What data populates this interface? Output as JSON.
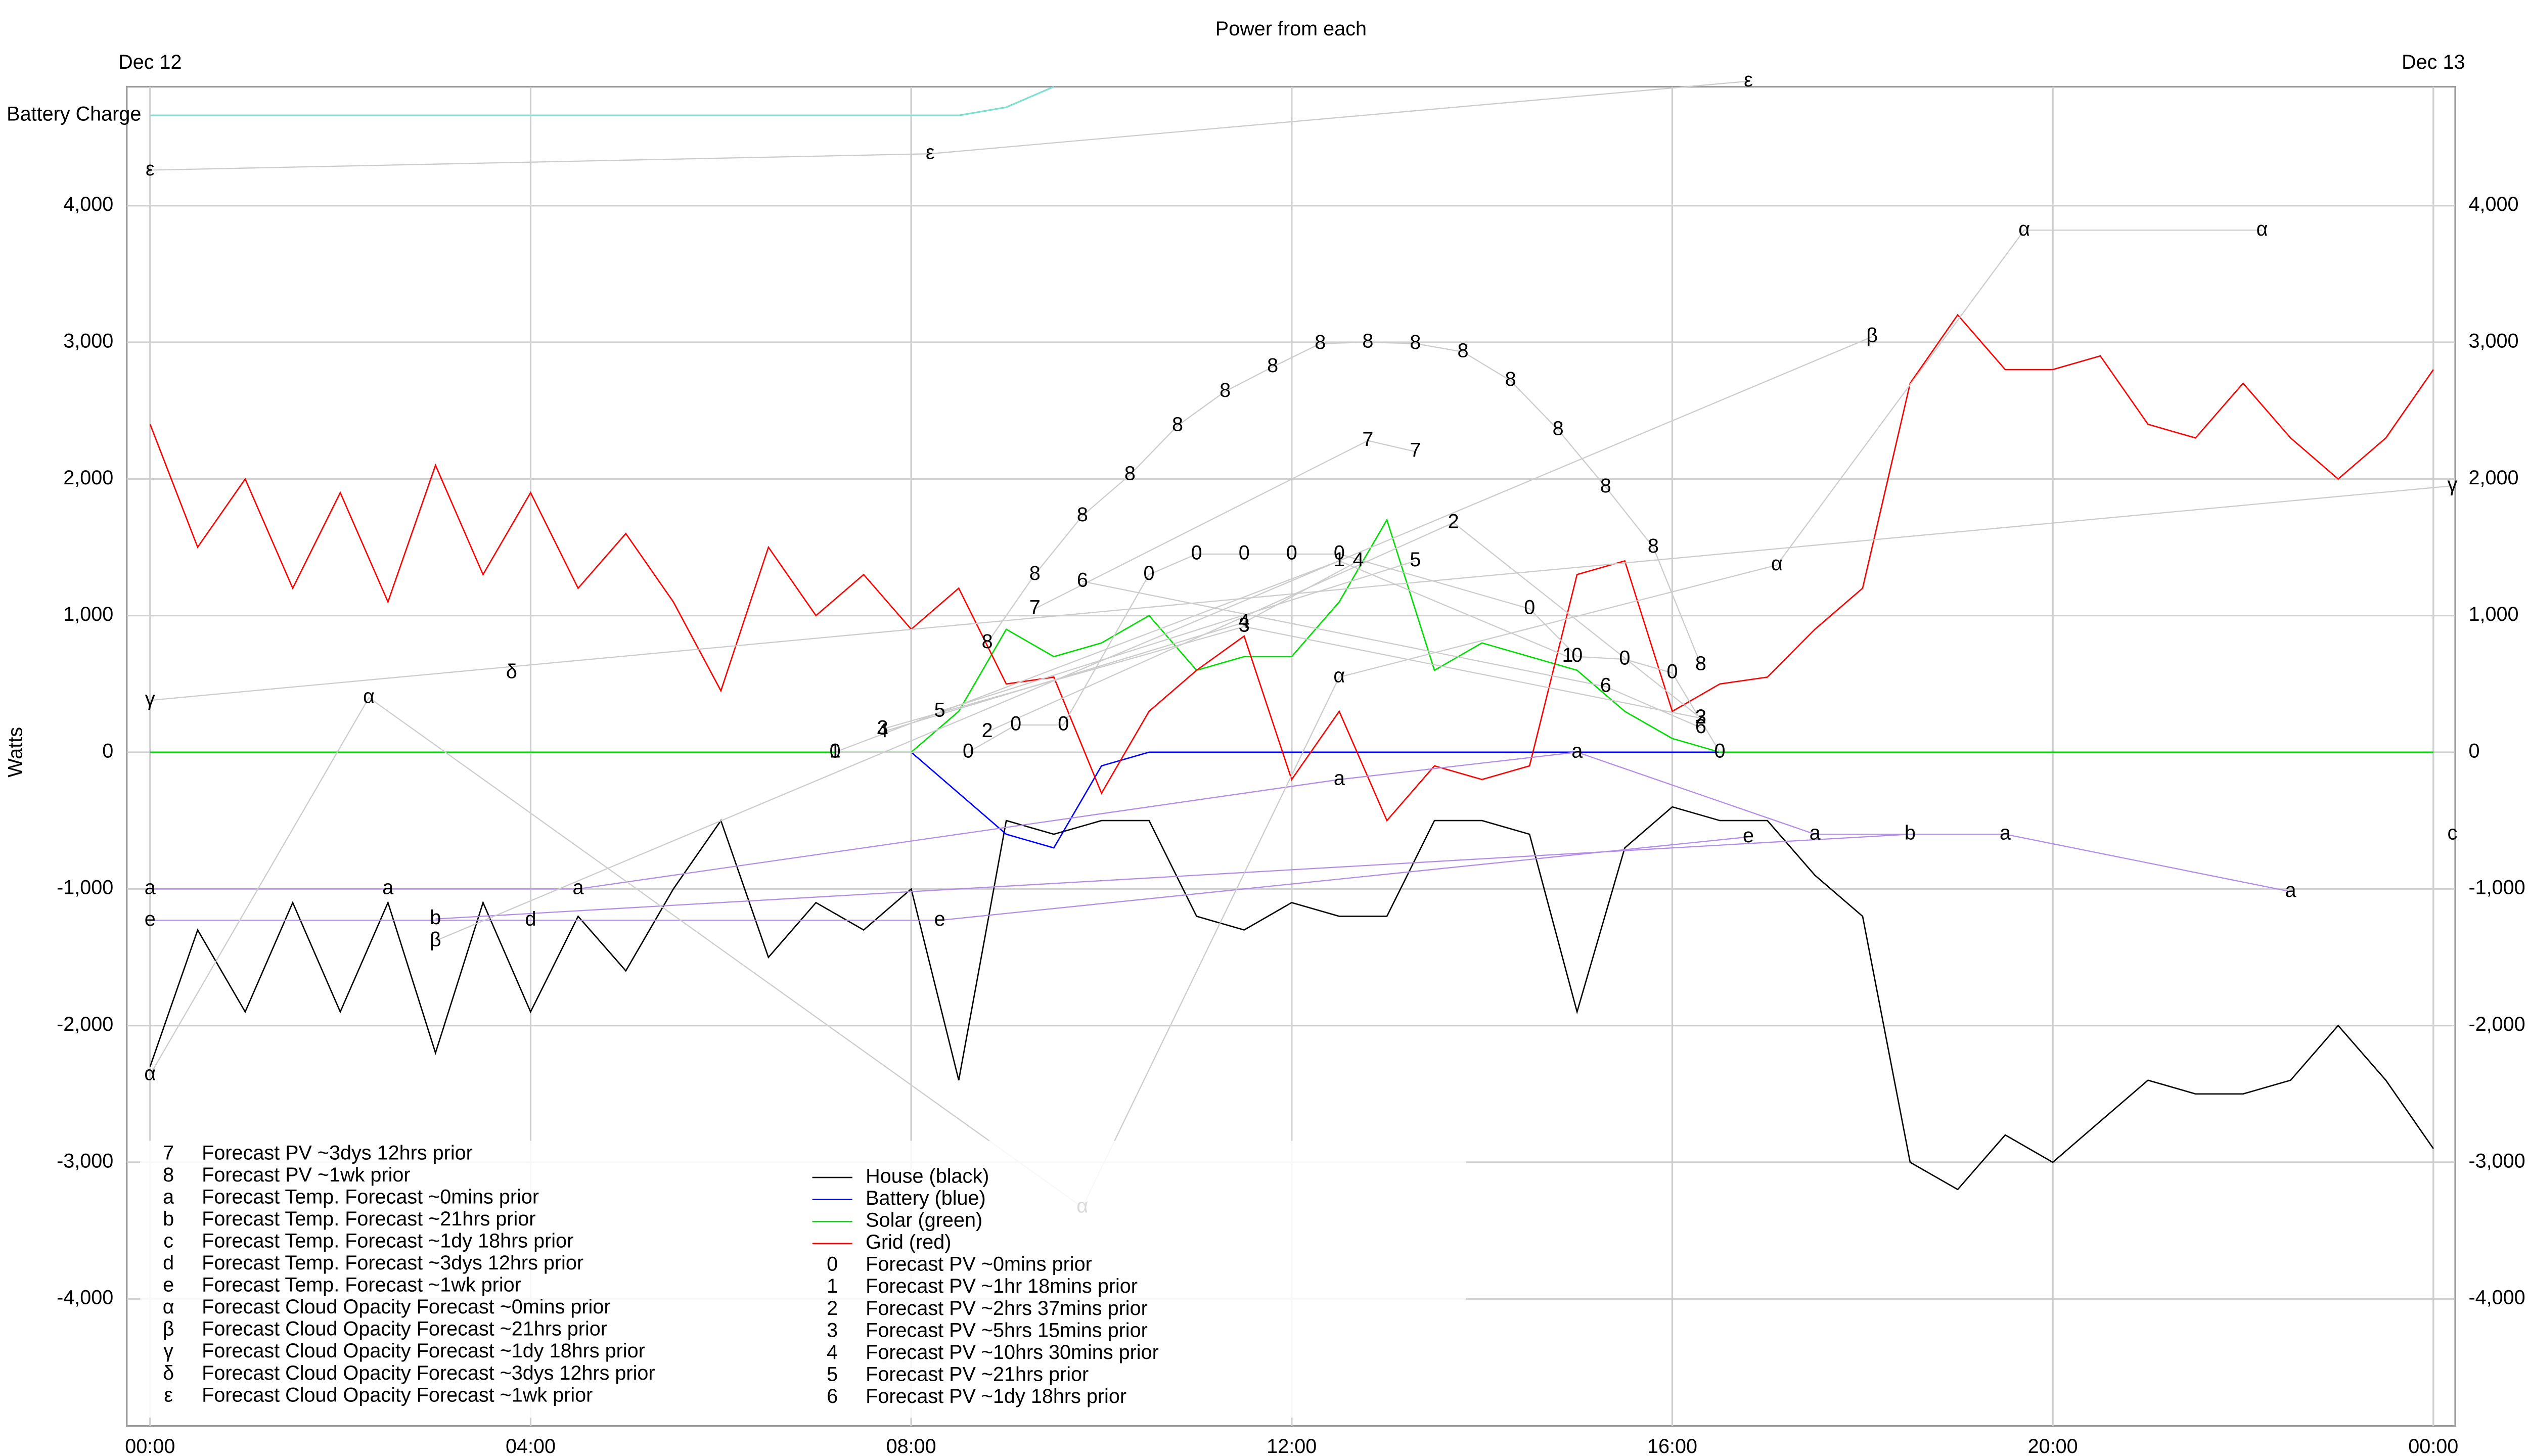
{
  "chart_data": {
    "type": "line",
    "title": "Power from each",
    "y_label": "Watts",
    "x_top_labels": [
      {
        "value": 0,
        "label": "Dec 12"
      },
      {
        "value": 24,
        "label": "Dec 13"
      }
    ],
    "xlim": [
      -0.245,
      24.23
    ],
    "xticks": [
      {
        "value": 0,
        "label": "00:00"
      },
      {
        "value": 4,
        "label": "04:00"
      },
      {
        "value": 8,
        "label": "08:00"
      },
      {
        "value": 12,
        "label": "12:00"
      },
      {
        "value": 16,
        "label": "16:00"
      },
      {
        "value": 20,
        "label": "20:00"
      },
      {
        "value": 24,
        "label": "00:00"
      }
    ],
    "ylim": [
      -4930,
      4870
    ],
    "yticks": [
      {
        "value": -4000,
        "label": "-4,000"
      },
      {
        "value": -3000,
        "label": "-3,000"
      },
      {
        "value": -2000,
        "label": "-2,000"
      },
      {
        "value": -1000,
        "label": "-1,000"
      },
      0,
      {
        "value": 1000,
        "label": "1,000"
      },
      {
        "value": 2000,
        "label": "2,000"
      },
      {
        "value": 3000,
        "label": "3,000"
      },
      {
        "value": 4000,
        "label": "4,000"
      }
    ],
    "grid": true,
    "x": [
      0,
      0.5,
      1,
      1.5,
      2,
      2.5,
      3,
      3.5,
      4,
      4.5,
      5,
      5.5,
      6,
      6.5,
      7,
      7.5,
      8,
      8.5,
      9,
      9.5,
      10,
      10.5,
      11,
      11.5,
      12,
      12.5,
      13,
      13.5,
      14,
      14.5,
      15,
      15.5,
      16,
      16.5,
      17,
      17.5,
      18,
      18.5,
      19,
      19.5,
      20,
      20.5,
      21,
      21.5,
      22,
      22.5,
      23,
      23.5,
      24
    ],
    "battery_charge": {
      "name": "Battery Charge",
      "color": "#7fe0d0",
      "values": [
        4660,
        4660,
        4660,
        4660,
        4660,
        4660,
        4660,
        4660,
        4660,
        4660,
        4660,
        4660,
        4660,
        4660,
        4660,
        4660,
        4660,
        4660,
        4720,
        4870,
        null,
        null,
        null,
        null,
        null,
        null,
        null,
        null,
        null,
        null,
        null,
        null,
        null,
        null,
        null,
        null,
        null,
        null,
        null,
        null,
        null,
        null,
        null,
        null,
        null,
        null,
        null,
        null,
        null
      ]
    },
    "series": [
      {
        "name": "House (black)",
        "color": "#000000",
        "values": [
          -2300,
          -1300,
          -1900,
          -1100,
          -1900,
          -1100,
          -2200,
          -1100,
          -1900,
          -1200,
          -1600,
          -1000,
          -500,
          -1500,
          -1100,
          -1300,
          -1000,
          -2400,
          -500,
          -600,
          -500,
          -500,
          -1200,
          -1300,
          -1100,
          -1200,
          -1200,
          -500,
          -500,
          -600,
          -1900,
          -700,
          -400,
          -500,
          -500,
          -900,
          -1200,
          -3000,
          -3200,
          -2800,
          -3000,
          -2700,
          -2400,
          -2500,
          -2500,
          -2400,
          -2000,
          -2400,
          -2900
        ]
      },
      {
        "name": "Battery (blue)",
        "color": "#0000ff",
        "values": [
          0,
          0,
          0,
          0,
          0,
          0,
          0,
          0,
          0,
          0,
          0,
          0,
          0,
          0,
          0,
          0,
          0,
          -300,
          -600,
          -700,
          -100,
          0,
          0,
          0,
          0,
          0,
          0,
          0,
          0,
          0,
          0,
          0,
          0,
          0,
          0,
          0,
          0,
          0,
          0,
          0,
          0,
          0,
          0,
          0,
          0,
          0,
          0,
          0,
          0
        ]
      },
      {
        "name": "Solar (green)",
        "color": "#00dd00",
        "values": [
          0,
          0,
          0,
          0,
          0,
          0,
          0,
          0,
          0,
          0,
          0,
          0,
          0,
          0,
          0,
          0,
          0,
          300,
          900,
          700,
          800,
          1000,
          600,
          700,
          700,
          1100,
          1700,
          600,
          800,
          700,
          600,
          300,
          100,
          0,
          0,
          0,
          0,
          0,
          0,
          0,
          0,
          0,
          0,
          0,
          0,
          0,
          0,
          0,
          0
        ]
      },
      {
        "name": "Grid (red)",
        "color": "#ff0000",
        "values": [
          2400,
          1500,
          2000,
          1200,
          1900,
          1100,
          2100,
          1300,
          1900,
          1200,
          1600,
          1100,
          450,
          1500,
          1000,
          1300,
          900,
          1200,
          500,
          550,
          -300,
          300,
          600,
          850,
          -200,
          300,
          -500,
          -100,
          -200,
          -100,
          1300,
          1400,
          300,
          500,
          550,
          900,
          1200,
          2700,
          3200,
          2800,
          2800,
          2900,
          2400,
          2300,
          2700,
          2300,
          2000,
          2300,
          2800
        ]
      },
      {
        "name": "Forecast PV ~0mins prior",
        "marker": "0",
        "color": "#cccccc",
        "x": [
          7.2,
          8.6,
          9.1,
          9.6,
          10.5,
          11,
          11.5,
          12,
          12.5,
          14.5,
          15,
          15.5,
          16,
          16.5
        ],
        "values": [
          0,
          0,
          200,
          200,
          1300,
          1450,
          1450,
          1450,
          1450,
          1050,
          700,
          680,
          580,
          0
        ]
      },
      {
        "name": "Forecast PV ~1hr 18mins prior",
        "marker": "1",
        "color": "#cccccc",
        "x": [
          7.2,
          12.5,
          14.9
        ],
        "values": [
          0,
          1400,
          700
        ]
      },
      {
        "name": "Forecast PV ~2hrs 37mins prior",
        "marker": "2",
        "color": "#cccccc",
        "x": [
          8.8,
          13.7,
          16.3
        ],
        "values": [
          150,
          1680,
          250
        ]
      },
      {
        "name": "Forecast PV ~5hrs 15mins prior",
        "marker": "3",
        "color": "#cccccc",
        "x": [
          7.7,
          11.5,
          16.3
        ],
        "values": [
          170,
          920,
          250
        ]
      },
      {
        "name": "Forecast PV ~10hrs 30mins prior",
        "marker": "4",
        "color": "#cccccc",
        "x": [
          7.7,
          11.5,
          12.7
        ],
        "values": [
          150,
          950,
          1400
        ]
      },
      {
        "name": "Forecast PV ~21hrs prior",
        "marker": "5",
        "color": "#cccccc",
        "x": [
          8.3,
          13.3
        ],
        "values": [
          300,
          1400
        ]
      },
      {
        "name": "Forecast PV ~1dy 18hrs prior",
        "marker": "6",
        "color": "#cccccc",
        "x": [
          9.8,
          15.3,
          16.3
        ],
        "values": [
          1250,
          480,
          180
        ]
      },
      {
        "name": "Forecast PV ~3dys 12hrs prior",
        "marker": "7",
        "color": "#cccccc",
        "x": [
          9.3,
          12.8,
          13.3
        ],
        "values": [
          1050,
          2280,
          2200
        ]
      },
      {
        "name": "Forecast PV ~1wk prior",
        "marker": "8",
        "color": "#cccccc",
        "x": [
          8.8,
          9.3,
          9.8,
          10.3,
          10.8,
          11.3,
          11.8,
          12.3,
          12.8,
          13.3,
          13.8,
          14.3,
          14.8,
          15.3,
          15.8,
          16.3
        ],
        "values": [
          800,
          1300,
          1730,
          2030,
          2390,
          2640,
          2820,
          2990,
          3000,
          2990,
          2930,
          2720,
          2360,
          1940,
          1500,
          640
        ]
      },
      {
        "name": "Forecast Temp. Forecast ~0mins prior",
        "marker": "a",
        "color": "#b48ce8",
        "x": [
          0,
          2.5,
          4.5,
          12.5,
          15,
          17.5,
          19.5,
          22.5
        ],
        "values": [
          -1000,
          -1000,
          -1000,
          -200,
          0,
          -600,
          -600,
          -1020
        ]
      },
      {
        "name": "Forecast Temp. Forecast ~21hrs prior",
        "marker": "b",
        "color": "#b48ce8",
        "x": [
          3,
          18.5
        ],
        "values": [
          -1220,
          -600
        ]
      },
      {
        "name": "Forecast Temp. Forecast ~1dy 18hrs prior",
        "marker": "c",
        "color": "#b48ce8",
        "x": [
          24.2
        ],
        "values": [
          -600
        ]
      },
      {
        "name": "Forecast Temp. Forecast ~3dys 12hrs prior",
        "marker": "d",
        "color": "#b48ce8",
        "x": [
          4
        ],
        "values": [
          -1230
        ]
      },
      {
        "name": "Forecast Temp. Forecast ~1wk prior",
        "marker": "e",
        "color": "#b48ce8",
        "x": [
          0,
          8.3,
          16.8
        ],
        "values": [
          -1230,
          -1230,
          -620
        ]
      },
      {
        "name": "Forecast Cloud Opacity Forecast ~0mins prior",
        "marker": "α",
        "color": "#cccccc",
        "x": [
          0,
          2.3,
          9.8,
          12.5,
          17.1,
          19.7,
          22.2
        ],
        "values": [
          -2360,
          400,
          -3330,
          550,
          1370,
          3820,
          3820
        ]
      },
      {
        "name": "Forecast Cloud Opacity Forecast ~21hrs prior",
        "marker": "β",
        "color": "#cccccc",
        "x": [
          3,
          18.1
        ],
        "values": [
          -1380,
          3040
        ]
      },
      {
        "name": "Forecast Cloud Opacity Forecast ~1dy 18hrs prior",
        "marker": "γ",
        "color": "#cccccc",
        "x": [
          0,
          24.2
        ],
        "values": [
          380,
          1950
        ]
      },
      {
        "name": "Forecast Cloud Opacity Forecast ~3dys 12hrs prior",
        "marker": "δ",
        "color": "#cccccc",
        "x": [
          3.8
        ],
        "values": [
          580
        ]
      },
      {
        "name": "Forecast Cloud Opacity Forecast ~1wk prior",
        "marker": "ε",
        "color": "#cccccc",
        "x": [
          0,
          8.2,
          16.8
        ],
        "values": [
          4260,
          4380,
          4910
        ]
      }
    ]
  }
}
